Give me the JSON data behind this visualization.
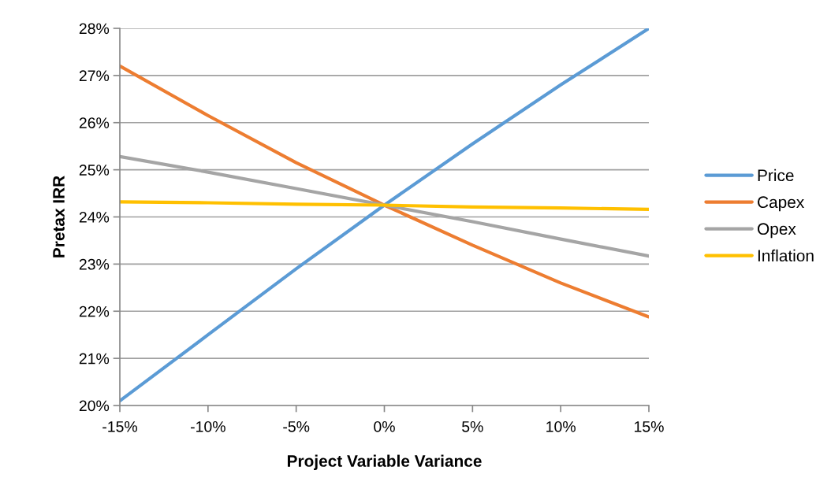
{
  "chart_data": {
    "type": "line",
    "xlabel": "Project Variable Variance",
    "ylabel": "Pretax IRR",
    "categories": [
      "-15%",
      "-10%",
      "-5%",
      "0%",
      "5%",
      "10%",
      "15%"
    ],
    "series": [
      {
        "name": "Price",
        "color": "#5b9bd5",
        "values": [
          20.1,
          21.5,
          22.9,
          24.25,
          25.55,
          26.8,
          28.0
        ]
      },
      {
        "name": "Capex",
        "color": "#ed7d31",
        "values": [
          27.2,
          26.15,
          25.15,
          24.25,
          23.4,
          22.6,
          21.88
        ]
      },
      {
        "name": "Opex",
        "color": "#a5a5a5",
        "values": [
          25.28,
          24.95,
          24.6,
          24.25,
          23.9,
          23.53,
          23.17
        ]
      },
      {
        "name": "Inflation",
        "color": "#ffc000",
        "values": [
          24.32,
          24.3,
          24.27,
          24.25,
          24.21,
          24.19,
          24.16
        ]
      }
    ],
    "ylim": [
      20,
      28
    ],
    "yticks": [
      {
        "value": 20,
        "label": "20%"
      },
      {
        "value": 21,
        "label": "21%"
      },
      {
        "value": 22,
        "label": "22%"
      },
      {
        "value": 23,
        "label": "23%"
      },
      {
        "value": 24,
        "label": "24%"
      },
      {
        "value": 25,
        "label": "25%"
      },
      {
        "value": 26,
        "label": "26%"
      },
      {
        "value": 27,
        "label": "27%"
      },
      {
        "value": 28,
        "label": "28%"
      }
    ],
    "grid": "y",
    "legend": "right",
    "marker": "none",
    "line_style": "solid"
  }
}
